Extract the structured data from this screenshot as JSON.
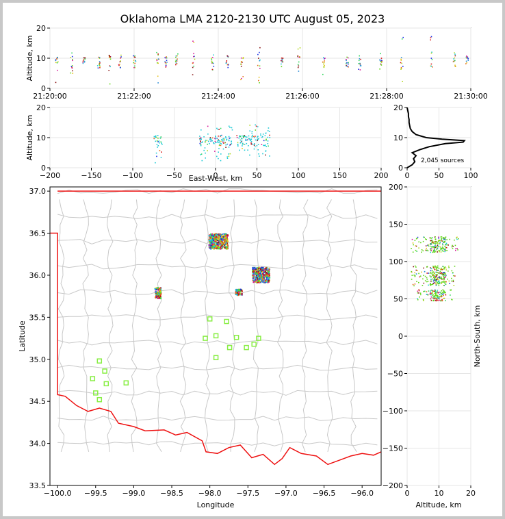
{
  "title": "Oklahoma LMA 2120-2130 UTC August 05, 2023",
  "colors": {
    "source_palette": [
      "#1a30e6",
      "#2a8bd6",
      "#1ecad6",
      "#2fd65a",
      "#61d61a",
      "#b0d61a",
      "#e6c21a",
      "#e66a1a",
      "#d61a1a",
      "#8a1a1a",
      "#d61a9a"
    ],
    "state_border": "#ee1111",
    "county_lines": "#c8c8c8",
    "stations": "#88ee44",
    "histogram": "#000000",
    "grid": "#e6e6e6"
  },
  "panels": {
    "time_height": {
      "ylabel": "Altitude, km",
      "yticks": [
        "0",
        "10",
        "20"
      ],
      "xticks": [
        "21:20:00",
        "21:22:00",
        "21:24:00",
        "21:26:00",
        "21:28:00",
        "21:30:00"
      ]
    },
    "ew_height": {
      "xlabel": "East-West, km",
      "ylabel": "Altitude, km",
      "yticks": [
        "0",
        "10",
        "20"
      ],
      "xticks": [
        "−200",
        "−150",
        "−100",
        "−50",
        "0",
        "50",
        "100",
        "150",
        "200"
      ]
    },
    "histogram": {
      "annotation": "2,045 sources",
      "yticks": [
        "0",
        "10",
        "20"
      ],
      "xticks": [
        "0",
        "50",
        "100"
      ]
    },
    "plan": {
      "xlabel": "Longitude",
      "ylabel": "Latitude",
      "xticks": [
        "−100.0",
        "−99.5",
        "−99.0",
        "−98.5",
        "−98.0",
        "−97.5",
        "−97.0",
        "−96.5",
        "−96.0"
      ],
      "yticks": [
        "33.5",
        "34.0",
        "34.5",
        "35.0",
        "35.5",
        "36.0",
        "36.5",
        "37.0"
      ]
    },
    "ns_height": {
      "xlabel": "Altitude, km",
      "ylabel": "North-South, km",
      "xticks": [
        "0",
        "10",
        "20"
      ],
      "yticks": [
        "−200",
        "−150",
        "−100",
        "−50",
        "0",
        "50",
        "100",
        "150",
        "200"
      ]
    }
  },
  "chart_data": [
    {
      "type": "scatter",
      "panel": "time_height",
      "xlabel": "",
      "ylabel": "Altitude, km",
      "xlim": [
        "21:20:00",
        "21:30:00"
      ],
      "ylim": [
        0,
        20
      ],
      "point_clusters": [
        {
          "time_min": 0.3,
          "alt": [
            2,
            15
          ]
        },
        {
          "time_min": 1.0,
          "alt": [
            5,
            12
          ]
        },
        {
          "time_min": 1.6,
          "alt": [
            6,
            11
          ]
        },
        {
          "time_min": 2.3,
          "alt": [
            6,
            11
          ]
        },
        {
          "time_min": 2.8,
          "alt": [
            1,
            12
          ]
        },
        {
          "time_min": 3.3,
          "alt": [
            7,
            12
          ]
        },
        {
          "time_min": 4.0,
          "alt": [
            7,
            10
          ]
        },
        {
          "time_min": 5.1,
          "alt": [
            2,
            13
          ]
        },
        {
          "time_min": 5.5,
          "alt": [
            5,
            11
          ]
        },
        {
          "time_min": 6.0,
          "alt": [
            8,
            12
          ]
        },
        {
          "time_min": 6.8,
          "alt": [
            3,
            18
          ]
        },
        {
          "time_min": 7.7,
          "alt": [
            5,
            12
          ]
        },
        {
          "time_min": 8.4,
          "alt": [
            5,
            12
          ]
        },
        {
          "time_min": 9.1,
          "alt": [
            2,
            12
          ]
        },
        {
          "time_min": 9.9,
          "alt": [
            1,
            14
          ]
        },
        {
          "time_min": 11.0,
          "alt": [
            7,
            10
          ]
        },
        {
          "time_min": 11.8,
          "alt": [
            5,
            15
          ]
        },
        {
          "time_min": 13.0,
          "alt": [
            3,
            11
          ]
        },
        {
          "time_min": 14.1,
          "alt": [
            7,
            11
          ]
        },
        {
          "time_min": 14.7,
          "alt": [
            5,
            11
          ]
        },
        {
          "time_min": 15.7,
          "alt": [
            6,
            12
          ]
        },
        {
          "time_min": 16.7,
          "alt": [
            2,
            20
          ]
        },
        {
          "time_min": 18.1,
          "alt": [
            7,
            18
          ]
        },
        {
          "time_min": 19.2,
          "alt": [
            7,
            12
          ]
        },
        {
          "time_min": 19.8,
          "alt": [
            8,
            11
          ]
        }
      ]
    },
    {
      "type": "scatter",
      "panel": "ew_height",
      "xlabel": "East-West, km",
      "ylabel": "Altitude, km",
      "xlim": [
        -200,
        200
      ],
      "ylim": [
        0,
        20
      ],
      "point_clusters": [
        {
          "x": [
            -75,
            -65
          ],
          "alt": [
            1,
            11
          ]
        },
        {
          "x": [
            -20,
            20
          ],
          "alt": [
            2,
            14
          ]
        },
        {
          "x": [
            25,
            40
          ],
          "alt": [
            6,
            11
          ]
        },
        {
          "x": [
            40,
            65
          ],
          "alt": [
            4,
            15
          ]
        }
      ]
    },
    {
      "type": "line",
      "panel": "histogram",
      "xlabel": "",
      "ylabel": "",
      "xlim": [
        0,
        100
      ],
      "ylim": [
        0,
        20
      ],
      "alt": [
        0,
        1,
        2,
        3,
        4,
        5,
        6,
        7,
        8,
        8.5,
        9,
        9.5,
        10,
        11,
        12,
        13,
        14,
        15,
        16,
        17,
        18,
        19,
        20
      ],
      "count": [
        0,
        8,
        12,
        10,
        14,
        8,
        20,
        35,
        60,
        88,
        90,
        55,
        30,
        14,
        8,
        5,
        4,
        3,
        3,
        2,
        2,
        1,
        0
      ]
    },
    {
      "type": "scatter",
      "panel": "plan",
      "xlabel": "Longitude",
      "ylabel": "Latitude",
      "xlim": [
        -100.1,
        -95.75
      ],
      "ylim": [
        33.5,
        37.05
      ],
      "source_clusters": [
        {
          "lon": [
            -98.73,
            -98.65
          ],
          "lat": [
            35.73,
            35.86
          ]
        },
        {
          "lon": [
            -98.02,
            -97.77
          ],
          "lat": [
            36.32,
            36.5
          ]
        },
        {
          "lon": [
            -97.67,
            -97.58
          ],
          "lat": [
            35.77,
            35.84
          ]
        },
        {
          "lon": [
            -97.45,
            -97.22
          ],
          "lat": [
            35.92,
            36.1
          ]
        }
      ],
      "stations": [
        {
          "lon": -98.0,
          "lat": 35.48
        },
        {
          "lon": -97.78,
          "lat": 35.45
        },
        {
          "lon": -97.92,
          "lat": 35.28
        },
        {
          "lon": -98.06,
          "lat": 35.25
        },
        {
          "lon": -97.65,
          "lat": 35.26
        },
        {
          "lon": -97.36,
          "lat": 35.25
        },
        {
          "lon": -97.42,
          "lat": 35.18
        },
        {
          "lon": -97.52,
          "lat": 35.14
        },
        {
          "lon": -97.74,
          "lat": 35.14
        },
        {
          "lon": -97.92,
          "lat": 35.02
        },
        {
          "lon": -99.45,
          "lat": 34.98
        },
        {
          "lon": -99.38,
          "lat": 34.86
        },
        {
          "lon": -99.54,
          "lat": 34.77
        },
        {
          "lon": -99.36,
          "lat": 34.71
        },
        {
          "lon": -99.1,
          "lat": 34.72
        },
        {
          "lon": -99.5,
          "lat": 34.6
        },
        {
          "lon": -99.45,
          "lat": 34.52
        }
      ]
    },
    {
      "type": "scatter",
      "panel": "ns_height",
      "xlabel": "Altitude, km",
      "ylabel": "North-South, km",
      "xlim": [
        0,
        20
      ],
      "ylim": [
        -200,
        200
      ],
      "point_clusters": [
        {
          "alt": [
            1,
            16
          ],
          "ns": [
            113,
            134
          ]
        },
        {
          "alt": [
            1,
            15
          ],
          "ns": [
            68,
            95
          ]
        },
        {
          "alt": [
            3,
            14
          ],
          "ns": [
            48,
            63
          ]
        }
      ]
    }
  ]
}
